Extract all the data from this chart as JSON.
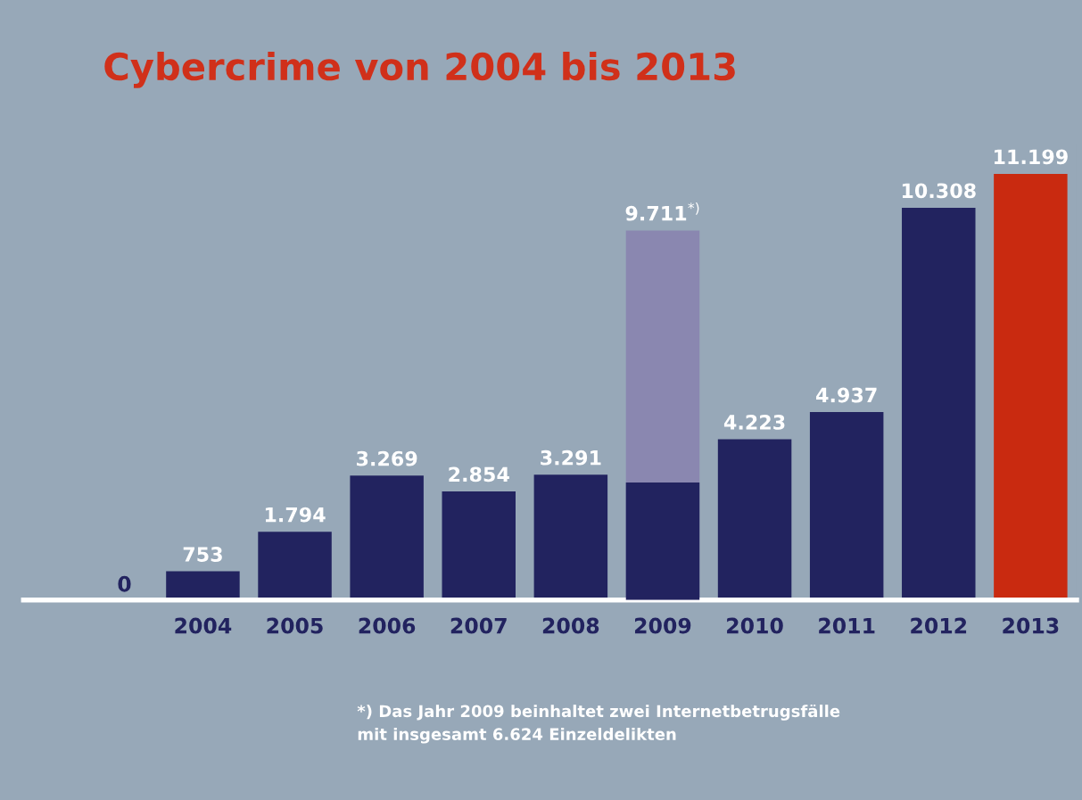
{
  "chart_data": {
    "type": "bar",
    "title": "Cybercrime von 2004 bis 2013",
    "categories": [
      "2004",
      "2005",
      "2006",
      "2007",
      "2008",
      "2009",
      "2010",
      "2011",
      "2012",
      "2013"
    ],
    "series": [
      {
        "colors": [
          "#22235f",
          "#22235f",
          "#22235f",
          "#22235f",
          "#22235f",
          "#8a87b0",
          "#22235f",
          "#22235f",
          "#22235f",
          "#c92a10"
        ],
        "values": [
          753,
          1794,
          3269,
          2854,
          3291,
          9711,
          4223,
          4937,
          10308,
          11199
        ],
        "value_labels": [
          "753",
          "1.794",
          "3.269",
          "2.854",
          "3.291",
          "9.711$^{*)}$",
          "4.223",
          "4.937",
          "10.308",
          "11.199"
        ]
      },
      {
        "color": "#22235f",
        "values": [
          null,
          null,
          null,
          null,
          null,
          3087,
          null,
          null,
          null,
          null
        ]
      }
    ],
    "grid": false,
    "legend": false,
    "annotations": [
      "0",
      "*) Das Jahr 2009 beinhaltet zwei Internetbetrugsfälle\nmit insgesamt 6.624 Einzeldelikten"
    ]
  }
}
